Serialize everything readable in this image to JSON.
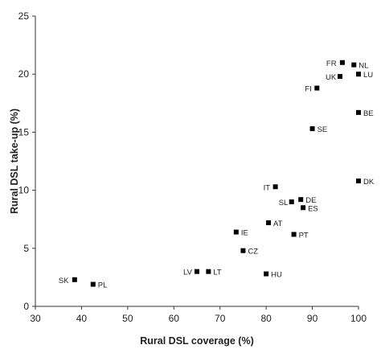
{
  "chart_data": {
    "type": "scatter",
    "xlabel": "Rural DSL coverage (%)",
    "ylabel": "Rural DSL take-up (%)",
    "xlim": [
      30,
      100
    ],
    "ylim": [
      0,
      25
    ],
    "xticks": [
      "30",
      "40",
      "50",
      "60",
      "70",
      "80",
      "90",
      "100"
    ],
    "yticks": [
      "0",
      "5",
      "10",
      "15",
      "20",
      "25"
    ],
    "grid": false,
    "legend": false,
    "marker_color": "#000000",
    "points": [
      {
        "label": "FR",
        "x": 96.5,
        "y": 21.0
      },
      {
        "label": "NL",
        "x": 99.0,
        "y": 20.8
      },
      {
        "label": "UK",
        "x": 96.0,
        "y": 19.8
      },
      {
        "label": "LU",
        "x": 100.0,
        "y": 20.0
      },
      {
        "label": "FI",
        "x": 91.0,
        "y": 18.8
      },
      {
        "label": "BE",
        "x": 100.0,
        "y": 16.7
      },
      {
        "label": "SE",
        "x": 90.0,
        "y": 15.3
      },
      {
        "label": "DK",
        "x": 100.0,
        "y": 10.8
      },
      {
        "label": "IT",
        "x": 82.0,
        "y": 10.3
      },
      {
        "label": "DE",
        "x": 87.5,
        "y": 9.2
      },
      {
        "label": "SL",
        "x": 85.5,
        "y": 9.0
      },
      {
        "label": "ES",
        "x": 88.0,
        "y": 8.5
      },
      {
        "label": "AT",
        "x": 80.5,
        "y": 7.2
      },
      {
        "label": "IE",
        "x": 73.5,
        "y": 6.4
      },
      {
        "label": "PT",
        "x": 86.0,
        "y": 6.2
      },
      {
        "label": "CZ",
        "x": 75.0,
        "y": 4.8
      },
      {
        "label": "LV",
        "x": 65.0,
        "y": 3.0
      },
      {
        "label": "LT",
        "x": 67.5,
        "y": 3.0
      },
      {
        "label": "HU",
        "x": 80.0,
        "y": 2.8
      },
      {
        "label": "SK",
        "x": 38.5,
        "y": 2.3
      },
      {
        "label": "PL",
        "x": 42.5,
        "y": 1.9
      }
    ]
  }
}
